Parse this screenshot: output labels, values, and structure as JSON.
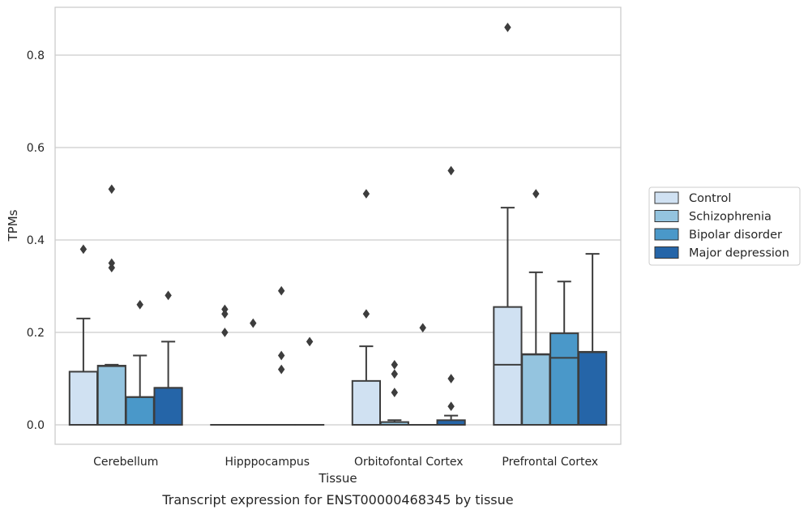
{
  "chart_data": {
    "type": "box",
    "title": "",
    "caption": "Transcript expression for ENST00000468345 by tissue",
    "xlabel": "Tissue",
    "ylabel": "TPMs",
    "ylim": [
      -0.04,
      0.905
    ],
    "yticks": [
      0.0,
      0.2,
      0.4,
      0.6,
      0.8
    ],
    "ytick_labels": [
      "0.0",
      "0.2",
      "0.4",
      "0.6",
      "0.8"
    ],
    "grid": "horizontal",
    "legend_position": "right",
    "categories": [
      "Cerebellum",
      "Hipppocampus",
      "Orbitofontal Cortex",
      "Prefrontal Cortex"
    ],
    "series": [
      {
        "name": "Control",
        "color": "#d0e1f2",
        "boxes": [
          {
            "q1": 0.0,
            "median": 0.0,
            "q3": 0.115,
            "whisker_low": 0.0,
            "whisker_high": 0.23,
            "outliers": [
              0.38
            ]
          },
          {
            "q1": 0.0,
            "median": 0.0,
            "q3": 0.0,
            "whisker_low": 0.0,
            "whisker_high": 0.0,
            "outliers": [
              0.2,
              0.24,
              0.25
            ]
          },
          {
            "q1": 0.0,
            "median": 0.0,
            "q3": 0.095,
            "whisker_low": 0.0,
            "whisker_high": 0.17,
            "outliers": [
              0.24,
              0.5
            ]
          },
          {
            "q1": 0.0,
            "median": 0.13,
            "q3": 0.255,
            "whisker_low": 0.0,
            "whisker_high": 0.47,
            "outliers": [
              0.86
            ]
          }
        ]
      },
      {
        "name": "Schizophrenia",
        "color": "#94c4df",
        "boxes": [
          {
            "q1": 0.0,
            "median": 0.127,
            "q3": 0.128,
            "whisker_low": 0.0,
            "whisker_high": 0.13,
            "outliers": [
              0.34,
              0.35,
              0.51
            ]
          },
          {
            "q1": 0.0,
            "median": 0.0,
            "q3": 0.0,
            "whisker_low": 0.0,
            "whisker_high": 0.0,
            "outliers": [
              0.22
            ]
          },
          {
            "q1": 0.0,
            "median": 0.0,
            "q3": 0.006,
            "whisker_low": 0.0,
            "whisker_high": 0.01,
            "outliers": [
              0.07,
              0.11,
              0.13
            ]
          },
          {
            "q1": 0.0,
            "median": 0.152,
            "q3": 0.153,
            "whisker_low": 0.0,
            "whisker_high": 0.33,
            "outliers": [
              0.5
            ]
          }
        ]
      },
      {
        "name": "Bipolar disorder",
        "color": "#4a98c9",
        "boxes": [
          {
            "q1": 0.0,
            "median": 0.06,
            "q3": 0.06,
            "whisker_low": 0.0,
            "whisker_high": 0.15,
            "outliers": [
              0.26
            ]
          },
          {
            "q1": 0.0,
            "median": 0.0,
            "q3": 0.0,
            "whisker_low": 0.0,
            "whisker_high": 0.0,
            "outliers": [
              0.12,
              0.15,
              0.29
            ]
          },
          {
            "q1": 0.0,
            "median": 0.0,
            "q3": 0.0,
            "whisker_low": 0.0,
            "whisker_high": 0.0,
            "outliers": [
              0.21
            ]
          },
          {
            "q1": 0.0,
            "median": 0.145,
            "q3": 0.198,
            "whisker_low": 0.0,
            "whisker_high": 0.31,
            "outliers": []
          }
        ]
      },
      {
        "name": "Major depression",
        "color": "#2565a8",
        "boxes": [
          {
            "q1": 0.0,
            "median": 0.08,
            "q3": 0.08,
            "whisker_low": 0.0,
            "whisker_high": 0.18,
            "outliers": [
              0.28
            ]
          },
          {
            "q1": 0.0,
            "median": 0.0,
            "q3": 0.0,
            "whisker_low": 0.0,
            "whisker_high": 0.0,
            "outliers": [
              0.18
            ]
          },
          {
            "q1": 0.0,
            "median": 0.0,
            "q3": 0.01,
            "whisker_low": 0.0,
            "whisker_high": 0.02,
            "outliers": [
              0.04,
              0.1,
              0.55
            ]
          },
          {
            "q1": 0.0,
            "median": 0.157,
            "q3": 0.158,
            "whisker_low": 0.0,
            "whisker_high": 0.37,
            "outliers": []
          }
        ]
      }
    ]
  }
}
